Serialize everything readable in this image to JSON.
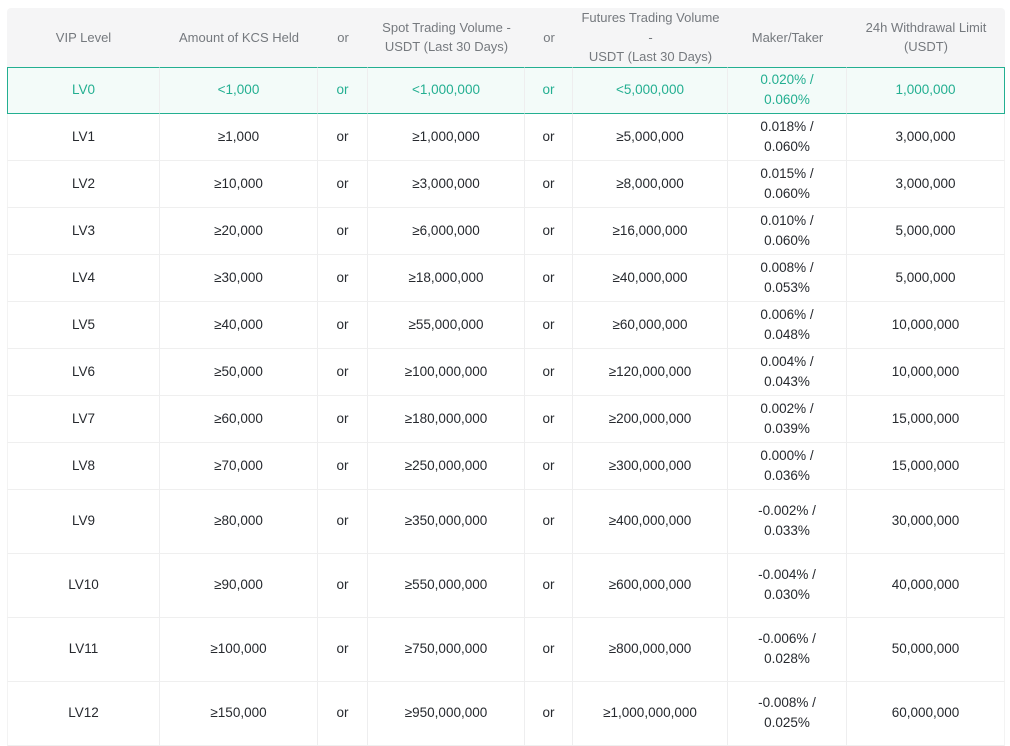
{
  "colors": {
    "accent": "#23af91",
    "highlight_row_bg": "#f3fbf9",
    "header_bg": "#f5f5f6",
    "header_text": "#75797e",
    "body_text": "#26292e",
    "divider": "#eeeeef"
  },
  "table": {
    "headers": [
      "VIP Level",
      "Amount of KCS Held",
      "or",
      "Spot Trading Volume -\nUSDT (Last 30 Days)",
      "or",
      "Futures Trading Volume -\nUSDT (Last 30 Days)",
      "Maker/Taker",
      "24h Withdrawal Limit\n(USDT)"
    ],
    "rows": [
      {
        "cells": [
          "LV0",
          "<1,000",
          "or",
          "<1,000,000",
          "or",
          "<5,000,000",
          "0.020% / 0.060%",
          "1,000,000"
        ],
        "highlighted": true,
        "tall": false
      },
      {
        "cells": [
          "LV1",
          "≥1,000",
          "or",
          "≥1,000,000",
          "or",
          "≥5,000,000",
          "0.018% / 0.060%",
          "3,000,000"
        ],
        "highlighted": false,
        "tall": false
      },
      {
        "cells": [
          "LV2",
          "≥10,000",
          "or",
          "≥3,000,000",
          "or",
          "≥8,000,000",
          "0.015% / 0.060%",
          "3,000,000"
        ],
        "highlighted": false,
        "tall": false
      },
      {
        "cells": [
          "LV3",
          "≥20,000",
          "or",
          "≥6,000,000",
          "or",
          "≥16,000,000",
          "0.010% / 0.060%",
          "5,000,000"
        ],
        "highlighted": false,
        "tall": false
      },
      {
        "cells": [
          "LV4",
          "≥30,000",
          "or",
          "≥18,000,000",
          "or",
          "≥40,000,000",
          "0.008% / 0.053%",
          "5,000,000"
        ],
        "highlighted": false,
        "tall": false
      },
      {
        "cells": [
          "LV5",
          "≥40,000",
          "or",
          "≥55,000,000",
          "or",
          "≥60,000,000",
          "0.006% / 0.048%",
          "10,000,000"
        ],
        "highlighted": false,
        "tall": false
      },
      {
        "cells": [
          "LV6",
          "≥50,000",
          "or",
          "≥100,000,000",
          "or",
          "≥120,000,000",
          "0.004% / 0.043%",
          "10,000,000"
        ],
        "highlighted": false,
        "tall": false
      },
      {
        "cells": [
          "LV7",
          "≥60,000",
          "or",
          "≥180,000,000",
          "or",
          "≥200,000,000",
          "0.002% / 0.039%",
          "15,000,000"
        ],
        "highlighted": false,
        "tall": false
      },
      {
        "cells": [
          "LV8",
          "≥70,000",
          "or",
          "≥250,000,000",
          "or",
          "≥300,000,000",
          "0.000% / 0.036%",
          "15,000,000"
        ],
        "highlighted": false,
        "tall": false
      },
      {
        "cells": [
          "LV9",
          "≥80,000",
          "or",
          "≥350,000,000",
          "or",
          "≥400,000,000",
          "-0.002% /\n0.033%",
          "30,000,000"
        ],
        "highlighted": false,
        "tall": true
      },
      {
        "cells": [
          "LV10",
          "≥90,000",
          "or",
          "≥550,000,000",
          "or",
          "≥600,000,000",
          "-0.004% /\n0.030%",
          "40,000,000"
        ],
        "highlighted": false,
        "tall": true
      },
      {
        "cells": [
          "LV11",
          "≥100,000",
          "or",
          "≥750,000,000",
          "or",
          "≥800,000,000",
          "-0.006% /\n0.028%",
          "50,000,000"
        ],
        "highlighted": false,
        "tall": true
      },
      {
        "cells": [
          "LV12",
          "≥150,000",
          "or",
          "≥950,000,000",
          "or",
          "≥1,000,000,000",
          "-0.008% /\n0.025%",
          "60,000,000"
        ],
        "highlighted": false,
        "tall": true
      }
    ]
  }
}
